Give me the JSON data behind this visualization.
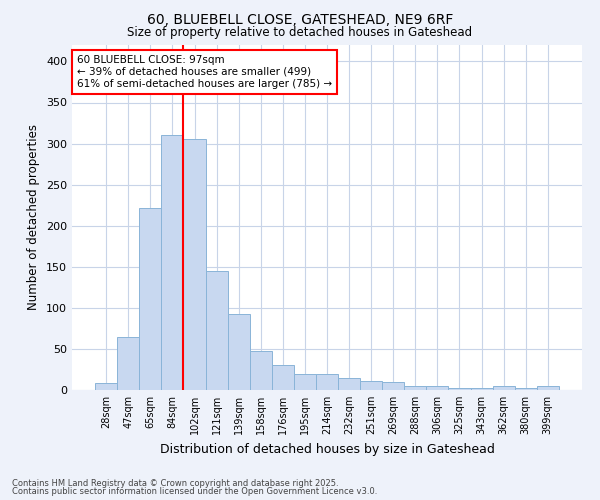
{
  "title_line1": "60, BLUEBELL CLOSE, GATESHEAD, NE9 6RF",
  "title_line2": "Size of property relative to detached houses in Gateshead",
  "xlabel": "Distribution of detached houses by size in Gateshead",
  "ylabel": "Number of detached properties",
  "categories": [
    "28sqm",
    "47sqm",
    "65sqm",
    "84sqm",
    "102sqm",
    "121sqm",
    "139sqm",
    "158sqm",
    "176sqm",
    "195sqm",
    "214sqm",
    "232sqm",
    "251sqm",
    "269sqm",
    "288sqm",
    "306sqm",
    "325sqm",
    "343sqm",
    "362sqm",
    "380sqm",
    "399sqm"
  ],
  "values": [
    8,
    65,
    222,
    311,
    305,
    145,
    93,
    48,
    30,
    20,
    19,
    15,
    11,
    10,
    5,
    5,
    3,
    2,
    5,
    2,
    5
  ],
  "bar_color": "#c8d8f0",
  "bar_edge_color": "#8ab4d8",
  "grid_color": "#c8d4e8",
  "background_color": "#eef2fa",
  "plot_bg_color": "#ffffff",
  "annotation_text_line1": "60 BLUEBELL CLOSE: 97sqm",
  "annotation_text_line2": "← 39% of detached houses are smaller (499)",
  "annotation_text_line3": "61% of semi-detached houses are larger (785) →",
  "annotation_box_color": "white",
  "annotation_box_edge": "red",
  "vline_color": "red",
  "vline_x": 4.0,
  "footer_line1": "Contains HM Land Registry data © Crown copyright and database right 2025.",
  "footer_line2": "Contains public sector information licensed under the Open Government Licence v3.0.",
  "ylim": [
    0,
    420
  ],
  "yticks": [
    0,
    50,
    100,
    150,
    200,
    250,
    300,
    350,
    400
  ]
}
